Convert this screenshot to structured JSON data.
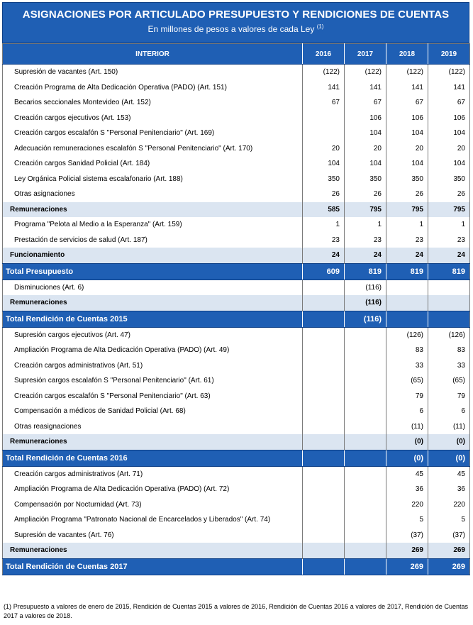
{
  "header": {
    "title": "ASIGNACIONES POR ARTICULADO PRESUPUESTO Y RENDICIONES DE CUENTAS",
    "subtitle": "En millones de pesos a valores de cada Ley",
    "subtitle_note": "(1)"
  },
  "columns": {
    "label": "INTERIOR",
    "years": [
      "2016",
      "2017",
      "2018",
      "2019"
    ]
  },
  "rows": [
    {
      "type": "item",
      "label": "Supresión de vacantes (Art. 150)",
      "v": [
        "(122)",
        "(122)",
        "(122)",
        "(122)"
      ]
    },
    {
      "type": "item",
      "label": "Creación Programa de Alta Dedicación Operativa (PADO) (Art. 151)",
      "v": [
        "141",
        "141",
        "141",
        "141"
      ]
    },
    {
      "type": "item",
      "label": "Becarios seccionales Montevideo (Art. 152)",
      "v": [
        "67",
        "67",
        "67",
        "67"
      ]
    },
    {
      "type": "item",
      "label": "Creación cargos ejecutivos (Art. 153)",
      "v": [
        "",
        "106",
        "106",
        "106"
      ]
    },
    {
      "type": "item",
      "label": "Creación cargos escalafón S \"Personal Penitenciario\" (Art. 169)",
      "v": [
        "",
        "104",
        "104",
        "104"
      ]
    },
    {
      "type": "item",
      "label": "Adecuación remuneraciones escalafón S \"Personal Penitenciario\" (Art. 170)",
      "v": [
        "20",
        "20",
        "20",
        "20"
      ]
    },
    {
      "type": "item",
      "label": "Creación cargos Sanidad Policial (Art. 184)",
      "v": [
        "104",
        "104",
        "104",
        "104"
      ]
    },
    {
      "type": "item",
      "label": "Ley Orgánica Policial sistema escalafonario (Art. 188)",
      "v": [
        "350",
        "350",
        "350",
        "350"
      ]
    },
    {
      "type": "item",
      "label": "Otras asignaciones",
      "v": [
        "26",
        "26",
        "26",
        "26"
      ]
    },
    {
      "type": "sub",
      "label": "Remuneraciones",
      "v": [
        "585",
        "795",
        "795",
        "795"
      ]
    },
    {
      "type": "item",
      "label": "Programa \"Pelota al Medio a la Esperanza\" (Art. 159)",
      "v": [
        "1",
        "1",
        "1",
        "1"
      ]
    },
    {
      "type": "item",
      "label": "Prestación de servicios de salud (Art. 187)",
      "v": [
        "23",
        "23",
        "23",
        "23"
      ]
    },
    {
      "type": "sub",
      "label": "Funcionamiento",
      "v": [
        "24",
        "24",
        "24",
        "24"
      ]
    },
    {
      "type": "tot",
      "label": "Total Presupuesto",
      "v": [
        "609",
        "819",
        "819",
        "819"
      ]
    },
    {
      "type": "item",
      "label": "Disminuciones (Art. 6)",
      "v": [
        "",
        "(116)",
        "",
        ""
      ]
    },
    {
      "type": "sub",
      "label": "Remuneraciones",
      "v": [
        "",
        "(116)",
        "",
        ""
      ]
    },
    {
      "type": "tot",
      "label": "Total Rendición de Cuentas 2015",
      "v": [
        "",
        "(116)",
        "",
        ""
      ]
    },
    {
      "type": "item",
      "label": "Supresión cargos ejecutivos (Art. 47)",
      "v": [
        "",
        "",
        "(126)",
        "(126)"
      ]
    },
    {
      "type": "item",
      "label": "Ampliación Programa de Alta Dedicación Operativa (PADO) (Art. 49)",
      "v": [
        "",
        "",
        "83",
        "83"
      ]
    },
    {
      "type": "item",
      "label": "Creación cargos administrativos (Art. 51)",
      "v": [
        "",
        "",
        "33",
        "33"
      ]
    },
    {
      "type": "item",
      "label": "Supresión cargos escalafón S \"Personal Penitenciario\" (Art. 61)",
      "v": [
        "",
        "",
        "(65)",
        "(65)"
      ]
    },
    {
      "type": "item",
      "label": "Creación cargos escalafón S \"Personal Penitenciario\" (Art. 63)",
      "v": [
        "",
        "",
        "79",
        "79"
      ]
    },
    {
      "type": "item",
      "label": "Compensación a médicos de Sanidad Policial (Art. 68)",
      "v": [
        "",
        "",
        "6",
        "6"
      ]
    },
    {
      "type": "item",
      "label": "Otras reasignaciones",
      "v": [
        "",
        "",
        "(11)",
        "(11)"
      ]
    },
    {
      "type": "sub",
      "label": "Remuneraciones",
      "v": [
        "",
        "",
        "(0)",
        "(0)"
      ]
    },
    {
      "type": "tot",
      "label": "Total Rendición de Cuentas 2016",
      "v": [
        "",
        "",
        "(0)",
        "(0)"
      ]
    },
    {
      "type": "item",
      "label": "Creación cargos administrativos (Art. 71)",
      "v": [
        "",
        "",
        "45",
        "45"
      ]
    },
    {
      "type": "item",
      "label": "Ampliación Programa de Alta Dedicación Operativa (PADO) (Art. 72)",
      "v": [
        "",
        "",
        "36",
        "36"
      ]
    },
    {
      "type": "item",
      "label": "Compensación por Nocturnidad (Art. 73)",
      "v": [
        "",
        "",
        "220",
        "220"
      ]
    },
    {
      "type": "item",
      "label": "Ampliación  Programa \"Patronato Nacional de Encarcelados y Liberados\" (Art. 74)",
      "v": [
        "",
        "",
        "5",
        "5"
      ]
    },
    {
      "type": "item",
      "label": "Supresión de vacantes (Art. 76)",
      "v": [
        "",
        "",
        "(37)",
        "(37)"
      ]
    },
    {
      "type": "sub",
      "label": "Remuneraciones",
      "v": [
        "",
        "",
        "269",
        "269"
      ]
    },
    {
      "type": "tot",
      "label": "Total Rendición de Cuentas 2017",
      "v": [
        "",
        "",
        "269",
        "269"
      ]
    }
  ],
  "footnote": "(1) Presupuesto a valores de enero de 2015, Rendición de Cuentas 2015 a valores de 2016, Rendición de Cuentas 2016 a valores de 2017, Rendición de Cuentas 2017 a valores de 2018."
}
